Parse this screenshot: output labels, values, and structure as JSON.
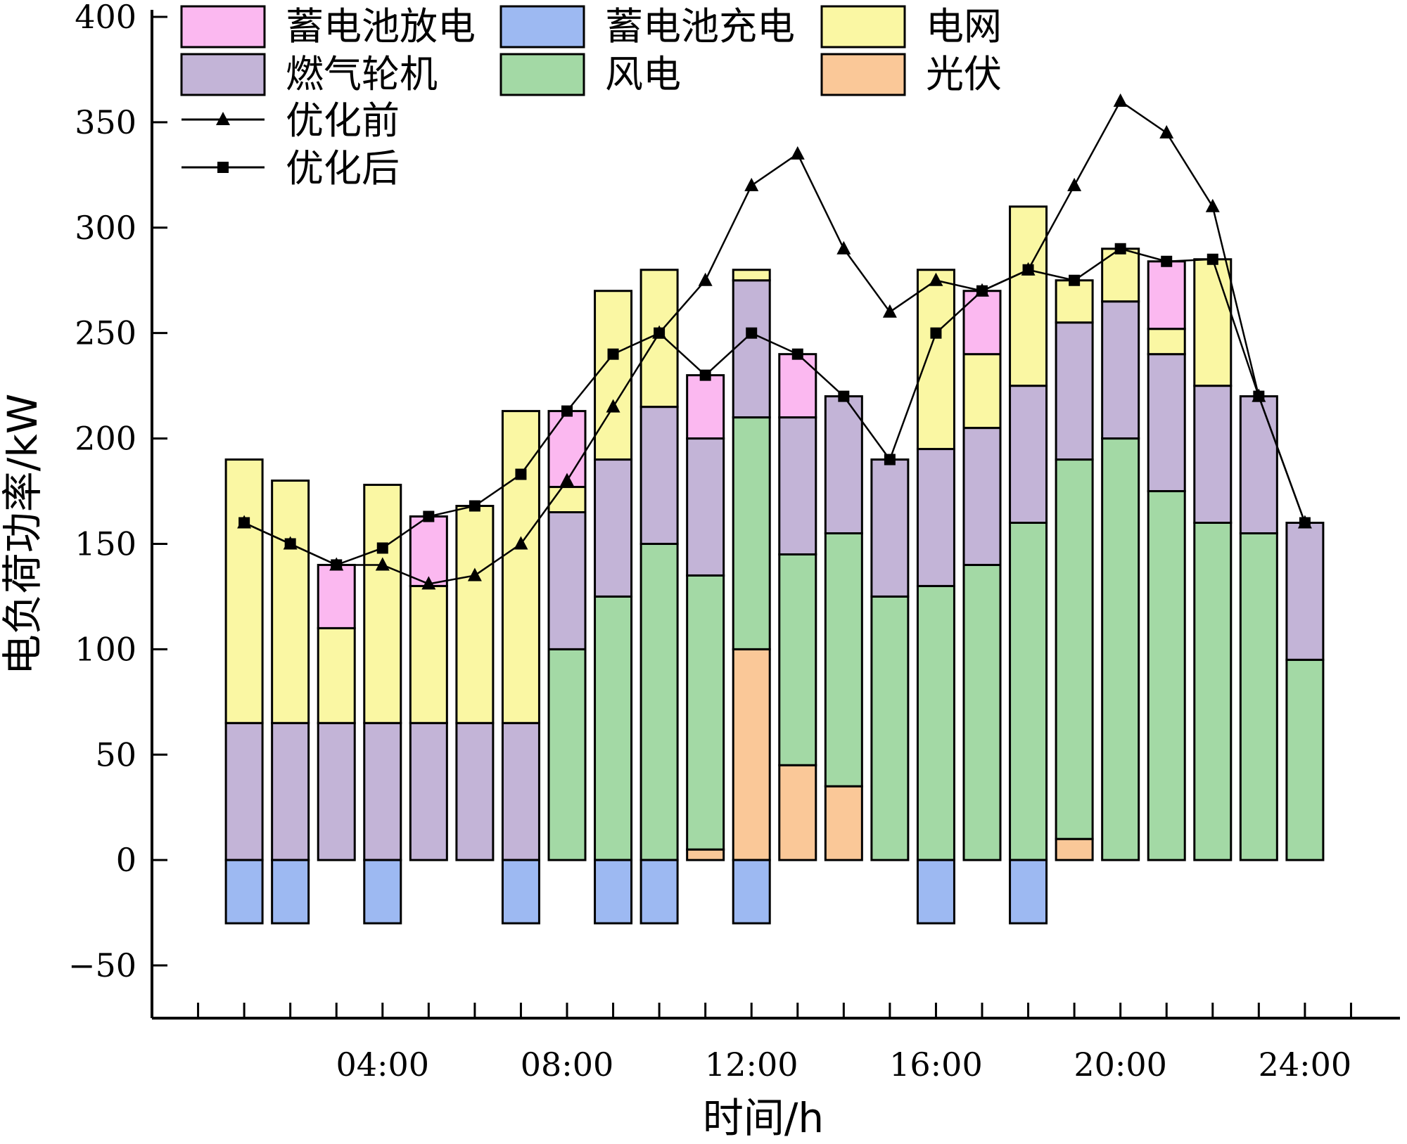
{
  "chart_data": {
    "type": "bar",
    "stacked": true,
    "title": "",
    "xlabel": "时间/h",
    "ylabel": "电负荷功率/kW",
    "ylim": [
      -75,
      400
    ],
    "yticks": [
      "−50",
      "0",
      "50",
      "100",
      "150",
      "200",
      "250",
      "300",
      "350",
      "400"
    ],
    "ytick_values": [
      -50,
      0,
      50,
      100,
      150,
      200,
      250,
      300,
      350,
      400
    ],
    "xticks": [
      "04:00",
      "08:00",
      "12:00",
      "16:00",
      "20:00",
      "24:00"
    ],
    "xtick_hours": [
      4,
      8,
      12,
      16,
      20,
      24
    ],
    "xlim": [
      -1,
      26
    ],
    "hours": [
      1,
      2,
      3,
      4,
      5,
      6,
      7,
      8,
      9,
      10,
      11,
      12,
      13,
      14,
      15,
      16,
      17,
      18,
      19,
      20,
      21,
      22,
      23,
      24
    ],
    "series": [
      {
        "name": "光伏",
        "color": "#FAC898",
        "values": [
          0,
          0,
          0,
          0,
          0,
          0,
          0,
          0,
          0,
          0,
          5,
          100,
          45,
          35,
          0,
          0,
          0,
          0,
          10,
          0,
          0,
          0,
          0,
          0
        ]
      },
      {
        "name": "风电",
        "color": "#A3D9A5",
        "values": [
          0,
          0,
          0,
          0,
          0,
          0,
          0,
          100,
          125,
          150,
          130,
          110,
          100,
          120,
          125,
          130,
          140,
          160,
          180,
          200,
          175,
          160,
          155,
          95
        ]
      },
      {
        "name": "燃气轮机",
        "color": "#C3B4D7",
        "values": [
          65,
          65,
          65,
          65,
          65,
          65,
          65,
          65,
          65,
          65,
          65,
          65,
          65,
          65,
          65,
          65,
          65,
          65,
          65,
          65,
          65,
          65,
          65,
          65
        ]
      },
      {
        "name": "电网",
        "color": "#FAF7A3",
        "values": [
          125,
          115,
          45,
          113,
          65,
          103,
          148,
          12,
          80,
          65,
          0,
          5,
          0,
          0,
          0,
          85,
          35,
          85,
          20,
          25,
          12,
          60,
          0,
          0
        ]
      },
      {
        "name": "蓄电池放电",
        "color": "#FBB8F0",
        "values": [
          0,
          0,
          30,
          0,
          33,
          0,
          0,
          36,
          0,
          0,
          30,
          0,
          30,
          0,
          0,
          0,
          30,
          0,
          0,
          0,
          32,
          0,
          0,
          0
        ]
      },
      {
        "name": "蓄电池充电",
        "color": "#9DB9F2",
        "values": [
          -30,
          -30,
          0,
          -30,
          0,
          0,
          -30,
          0,
          -30,
          -30,
          0,
          -30,
          0,
          0,
          0,
          -30,
          0,
          -30,
          0,
          0,
          0,
          0,
          0,
          0
        ]
      }
    ],
    "lines": [
      {
        "name": "优化前",
        "marker": "triangle",
        "values": [
          160,
          150,
          140,
          140,
          131,
          135,
          150,
          180,
          215,
          250,
          275,
          320,
          335,
          290,
          260,
          275,
          270,
          280,
          320,
          360,
          345,
          310,
          220,
          160
        ]
      },
      {
        "name": "优化后",
        "marker": "square",
        "values": [
          160,
          150,
          140,
          148,
          163,
          168,
          183,
          213,
          240,
          250,
          230,
          250,
          240,
          220,
          190,
          250,
          270,
          280,
          275,
          290,
          284,
          285,
          220,
          160
        ]
      }
    ],
    "legend_order": [
      "蓄电池放电",
      "蓄电池充电",
      "电网",
      "燃气轮机",
      "风电",
      "光伏",
      "优化前",
      "优化后"
    ],
    "legend_position": "top-left",
    "grid": false
  }
}
